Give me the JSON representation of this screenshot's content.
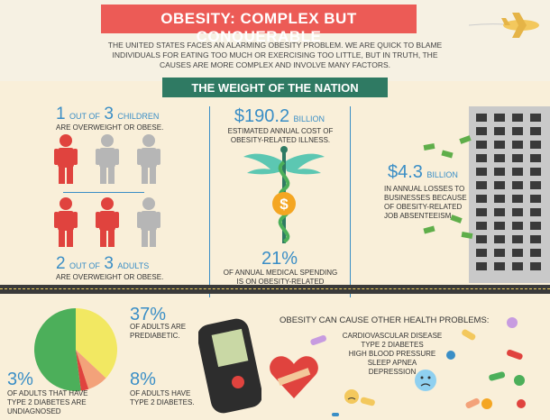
{
  "header": {
    "title": "OBESITY: COMPLEX BUT CONQUERABLE",
    "intro": "THE UNITED STATES FACES AN ALARMING OBESITY PROBLEM. WE ARE QUICK TO BLAME INDIVIDUALS FOR EATING TOO MUCH OR EXERCISING TOO LITTLE, BUT IN TRUTH, THE CAUSES ARE MORE COMPLEX AND INVOLVE MANY FACTORS.",
    "subtitle": "THE WEIGHT OF THE NATION"
  },
  "children": {
    "num1": "1",
    "out_of": "OUT OF",
    "num2": "3",
    "group": "CHILDREN",
    "desc": "ARE OVERWEIGHT OR OBESE."
  },
  "adults": {
    "num1": "2",
    "out_of": "OUT OF",
    "num2": "3",
    "group": "ADULTS",
    "desc": "ARE OVERWEIGHT OR OBESE."
  },
  "cost": {
    "amount": "$190.2",
    "unit": "BILLION",
    "desc": "ESTIMATED ANNUAL COST OF OBESITY-RELATED ILLNESS."
  },
  "medical": {
    "pct": "21%",
    "desc": "OF ANNUAL MEDICAL SPENDING IS ON OBESITY-RELATED ILLNESS."
  },
  "business": {
    "amount": "$4.3",
    "unit": "BILLION",
    "desc": "IN ANNUAL LOSSES TO BUSINESSES BECAUSE OF OBESITY-RELATED JOB ABSENTEEISM."
  },
  "prediabetic": {
    "pct": "37%",
    "desc": "OF ADULTS ARE PREDIABETIC."
  },
  "diabetes": {
    "pct": "8%",
    "desc": "OF ADULTS HAVE TYPE 2 DIABETES."
  },
  "undiagnosed": {
    "pct": "3%",
    "desc": "OF ADULTS THAT HAVE TYPE 2 DIABETES ARE UNDIAGNOSED"
  },
  "health": {
    "heading": "OBESITY CAN CAUSE OTHER HEALTH PROBLEMS:",
    "items": [
      "CARDIOVASCULAR DISEASE",
      "TYPE 2 DIABETES",
      "HIGH BLOOD PRESSURE",
      "SLEEP APNEA",
      "DEPRESSION"
    ]
  },
  "colors": {
    "accent_red": "#ec5b56",
    "accent_green": "#2f7a63",
    "accent_blue": "#3a8ec6",
    "person_red": "#e0433e",
    "person_gray": "#b6b6b6"
  },
  "children_figures": {
    "highlighted": 1,
    "total": 3
  },
  "adult_figures": {
    "highlighted": 2,
    "total": 3
  },
  "pie": {
    "slices": [
      {
        "label": "prediabetic",
        "value": 37,
        "color": "#f2e862"
      },
      {
        "label": "type 2 diabetes",
        "value": 8,
        "color": "#f3a27a"
      },
      {
        "label": "undiagnosed",
        "value": 3,
        "color": "#e0433e"
      },
      {
        "label": "rest",
        "value": 52,
        "color": "#4caf5a"
      }
    ]
  }
}
